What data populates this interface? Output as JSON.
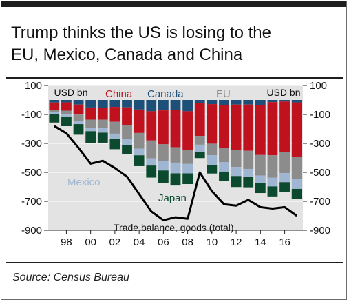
{
  "title_lines": [
    "Trump thinks the US is losing to the",
    "EU, Mexico, Canada and China"
  ],
  "source": "Source: Census Bureau",
  "colors": {
    "China": "#c0111f",
    "Canada": "#1d4f78",
    "EU": "#8c8c8c",
    "Mexico": "#9fb6d3",
    "Japan": "#0b4a2e",
    "line": "#000000",
    "plot_bg": "#e3e3e3",
    "top_bar": "#1e1e1e"
  },
  "chart_data": {
    "type": "bar",
    "stacked": true,
    "ylabel_left": "USD bn",
    "ylabel_right": "USD bn",
    "ylim": [
      -900,
      100
    ],
    "yticks": [
      100,
      -100,
      -300,
      -500,
      -700,
      -900
    ],
    "ytick_labels": [
      "100",
      "-100",
      "-300",
      "-500",
      "-700",
      "-900"
    ],
    "x": [
      1997,
      1998,
      1999,
      2000,
      2001,
      2002,
      2003,
      2004,
      2005,
      2006,
      2007,
      2008,
      2009,
      2010,
      2011,
      2012,
      2013,
      2014,
      2015,
      2016,
      2017
    ],
    "xtick_labels": [
      {
        "year": 1998,
        "label": "98"
      },
      {
        "year": 2000,
        "label": "00"
      },
      {
        "year": 2002,
        "label": "02"
      },
      {
        "year": 2004,
        "label": "04"
      },
      {
        "year": 2006,
        "label": "06"
      },
      {
        "year": 2008,
        "label": "08"
      },
      {
        "year": 2010,
        "label": "10"
      },
      {
        "year": 2012,
        "label": "12"
      },
      {
        "year": 2014,
        "label": "14"
      },
      {
        "year": 2016,
        "label": "16"
      }
    ],
    "legend_labels": {
      "China": "China",
      "Canada": "Canada",
      "EU": "EU",
      "Mexico": "Mexico",
      "Japan": "Japan"
    },
    "series": [
      {
        "name": "Canada",
        "values": [
          -18,
          -17,
          -32,
          -52,
          -53,
          -48,
          -51,
          -66,
          -78,
          -72,
          -68,
          -78,
          -21,
          -29,
          -35,
          -32,
          -32,
          -35,
          -15,
          -11,
          -17
        ]
      },
      {
        "name": "China",
        "values": [
          -50,
          -57,
          -69,
          -84,
          -83,
          -103,
          -124,
          -162,
          -202,
          -234,
          -258,
          -268,
          -227,
          -273,
          -295,
          -315,
          -319,
          -345,
          -367,
          -347,
          -375
        ]
      },
      {
        "name": "EU",
        "values": [
          -17,
          -27,
          -43,
          -55,
          -60,
          -82,
          -94,
          -109,
          -123,
          -117,
          -107,
          -96,
          -61,
          -80,
          -100,
          -116,
          -125,
          -142,
          -155,
          -147,
          -151
        ]
      },
      {
        "name": "Mexico",
        "values": [
          -15,
          -16,
          -23,
          -25,
          -30,
          -37,
          -41,
          -45,
          -50,
          -64,
          -74,
          -65,
          -48,
          -66,
          -65,
          -62,
          -54,
          -54,
          -60,
          -63,
          -71
        ]
      },
      {
        "name": "Japan",
        "values": [
          -56,
          -64,
          -73,
          -81,
          -69,
          -70,
          -66,
          -75,
          -83,
          -88,
          -84,
          -74,
          -44,
          -60,
          -63,
          -76,
          -73,
          -67,
          -69,
          -69,
          -69
        ]
      }
    ],
    "line_series": {
      "name": "Trade balance, goods (total)",
      "values": [
        -180,
        -230,
        -330,
        -440,
        -420,
        -470,
        -530,
        -650,
        -770,
        -830,
        -810,
        -820,
        -500,
        -630,
        -720,
        -730,
        -690,
        -740,
        -750,
        -740,
        -800
      ]
    }
  }
}
